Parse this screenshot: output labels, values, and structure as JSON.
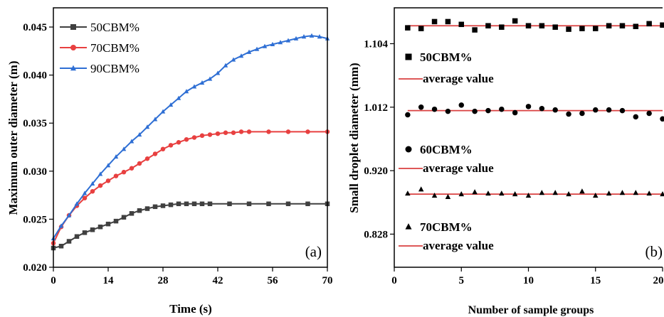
{
  "chart_data": [
    {
      "panel_label": "(a)",
      "type": "scatter",
      "xlabel": "Time (s)",
      "ylabel": "Maximum outer diameter (m)",
      "xlim": [
        0,
        70
      ],
      "ylim": [
        0.02,
        0.047
      ],
      "xticks": [
        "0",
        "14",
        "28",
        "42",
        "56",
        "70"
      ],
      "yticks": [
        "0.020",
        "0.025",
        "0.030",
        "0.035",
        "0.040",
        "0.045"
      ],
      "legend_position": "top-left",
      "series": [
        {
          "name": "50CBM%",
          "marker": "square",
          "color": "#404040",
          "x": [
            0,
            2,
            4,
            6,
            8,
            10,
            12,
            14,
            16,
            18,
            20,
            22,
            24,
            26,
            28,
            30,
            32,
            34,
            36,
            38,
            40,
            45,
            50,
            55,
            60,
            65,
            70
          ],
          "y": [
            0.022,
            0.0222,
            0.0227,
            0.0232,
            0.0236,
            0.0239,
            0.0242,
            0.0245,
            0.0248,
            0.0252,
            0.0256,
            0.0259,
            0.0261,
            0.0263,
            0.0264,
            0.0265,
            0.0266,
            0.0266,
            0.0266,
            0.0266,
            0.0266,
            0.0266,
            0.0266,
            0.0266,
            0.0266,
            0.0266,
            0.0266
          ]
        },
        {
          "name": "70CBM%",
          "marker": "circle",
          "color": "#e84040",
          "x": [
            0,
            2,
            4,
            6,
            8,
            10,
            12,
            14,
            16,
            18,
            20,
            22,
            24,
            26,
            28,
            30,
            32,
            34,
            36,
            38,
            40,
            42,
            44,
            46,
            48,
            50,
            55,
            60,
            65,
            70
          ],
          "y": [
            0.0225,
            0.0242,
            0.0254,
            0.0264,
            0.0272,
            0.0279,
            0.0285,
            0.029,
            0.0295,
            0.0299,
            0.0303,
            0.0308,
            0.0313,
            0.0318,
            0.0323,
            0.0327,
            0.033,
            0.0333,
            0.0335,
            0.0337,
            0.0338,
            0.0339,
            0.034,
            0.034,
            0.0341,
            0.0341,
            0.0341,
            0.0341,
            0.0341,
            0.0341
          ]
        },
        {
          "name": "90CBM%",
          "marker": "triangle",
          "color": "#2f6fd4",
          "x": [
            0,
            2,
            4,
            6,
            8,
            10,
            12,
            14,
            16,
            18,
            20,
            22,
            24,
            26,
            28,
            30,
            32,
            34,
            36,
            38,
            40,
            42,
            44,
            46,
            48,
            50,
            52,
            54,
            56,
            58,
            60,
            62,
            64,
            66,
            68,
            70
          ],
          "y": [
            0.023,
            0.0243,
            0.0254,
            0.0266,
            0.0277,
            0.0287,
            0.0297,
            0.0306,
            0.0315,
            0.0323,
            0.0331,
            0.0338,
            0.0346,
            0.0354,
            0.0362,
            0.0369,
            0.0376,
            0.0383,
            0.0388,
            0.0392,
            0.0396,
            0.0402,
            0.041,
            0.0416,
            0.042,
            0.0424,
            0.0427,
            0.043,
            0.0432,
            0.0434,
            0.0436,
            0.0438,
            0.044,
            0.0441,
            0.044,
            0.0438
          ]
        }
      ]
    },
    {
      "panel_label": "(b)",
      "type": "scatter",
      "xlabel": "Number of sample groups",
      "ylabel": "Small droplet diameter (mm)",
      "xlim": [
        0,
        20
      ],
      "ylim": [
        0.78,
        1.156
      ],
      "xticks": [
        "0",
        "5",
        "10",
        "15",
        "20"
      ],
      "yticks": [
        "0.828",
        "0.920",
        "1.012",
        "1.104"
      ],
      "series": [
        {
          "name": "50CBM%",
          "marker": "square",
          "color": "#000000",
          "average_label": "average value",
          "average": 1.13,
          "x": [
            1,
            2,
            3,
            4,
            5,
            6,
            7,
            8,
            9,
            10,
            11,
            12,
            13,
            14,
            15,
            16,
            17,
            18,
            19,
            20
          ],
          "y": [
            1.127,
            1.126,
            1.136,
            1.136,
            1.132,
            1.124,
            1.13,
            1.128,
            1.137,
            1.13,
            1.13,
            1.128,
            1.125,
            1.126,
            1.126,
            1.13,
            1.13,
            1.129,
            1.133,
            1.131
          ]
        },
        {
          "name": "60CBM%",
          "marker": "circle",
          "color": "#000000",
          "average_label": "average value",
          "average": 1.007,
          "x": [
            1,
            2,
            3,
            4,
            5,
            6,
            7,
            8,
            9,
            10,
            11,
            12,
            13,
            14,
            15,
            16,
            17,
            18,
            19,
            20
          ],
          "y": [
            1.001,
            1.012,
            1.009,
            1.006,
            1.015,
            1.006,
            1.007,
            1.009,
            1.004,
            1.013,
            1.01,
            1.008,
            1.002,
            1.003,
            1.008,
            1.008,
            1.007,
            0.998,
            1.003,
            0.995
          ]
        },
        {
          "name": "70CBM%",
          "marker": "triangle",
          "color": "#000000",
          "average_label": "average value",
          "average": 0.886,
          "x": [
            1,
            2,
            3,
            4,
            5,
            6,
            7,
            8,
            9,
            10,
            11,
            12,
            13,
            14,
            15,
            16,
            17,
            18,
            19,
            20
          ],
          "y": [
            0.887,
            0.893,
            0.884,
            0.882,
            0.886,
            0.889,
            0.887,
            0.887,
            0.886,
            0.884,
            0.888,
            0.888,
            0.886,
            0.89,
            0.884,
            0.887,
            0.888,
            0.888,
            0.887,
            0.886
          ]
        }
      ]
    }
  ]
}
